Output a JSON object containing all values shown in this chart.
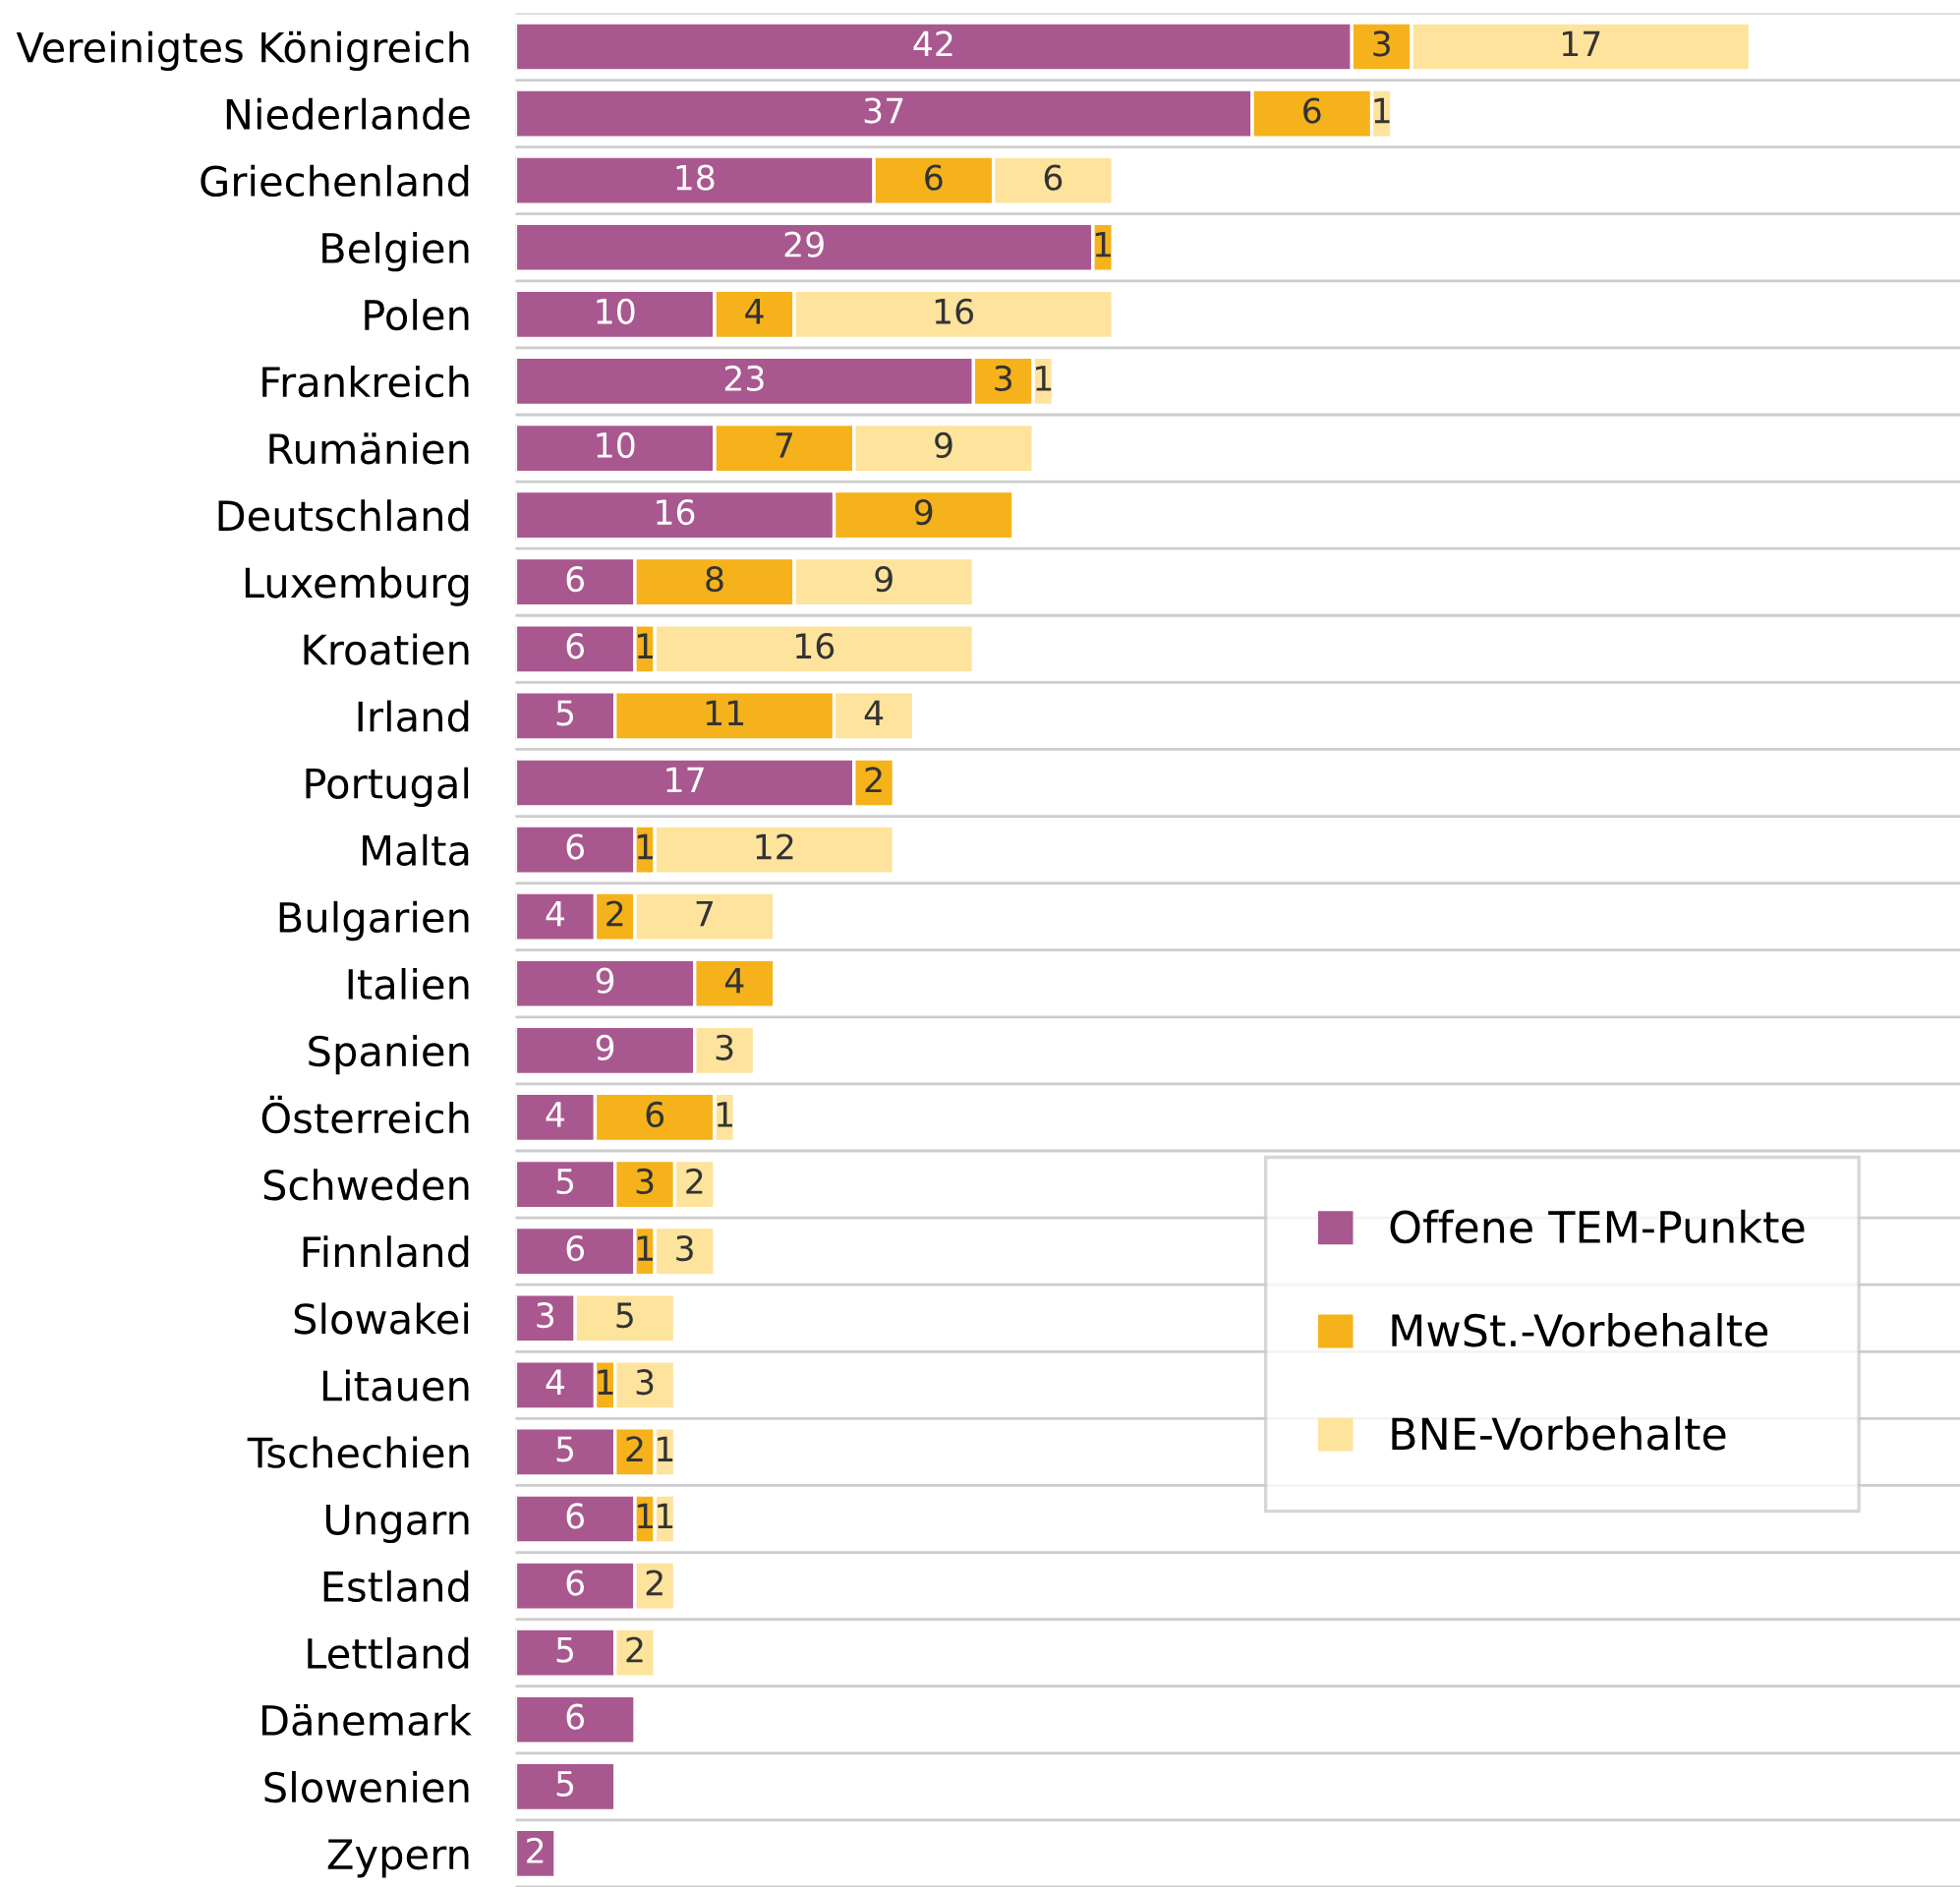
{
  "chart_data": {
    "type": "bar",
    "orientation": "horizontal",
    "stacked": true,
    "data_labels": true,
    "grid": "y",
    "legend": "right",
    "tick_labels": "y",
    "categories": [
      "Vereinigtes Königreich",
      "Niederlande",
      "Griechenland",
      "Belgien",
      "Polen",
      "Frankreich",
      "Rumänien",
      "Deutschland",
      "Luxemburg",
      "Kroatien",
      "Irland",
      "Portugal",
      "Malta",
      "Bulgarien",
      "Italien",
      "Spanien",
      "Österreich",
      "Schweden",
      "Finnland",
      "Slowakei",
      "Litauen",
      "Tschechien",
      "Ungarn",
      "Estland",
      "Lettland",
      "Dänemark",
      "Slowenien",
      "Zypern"
    ],
    "series": [
      {
        "name": "Offene TEM-Punkte",
        "color": "#a8588f",
        "values": [
          42,
          37,
          18,
          29,
          10,
          23,
          10,
          16,
          6,
          6,
          5,
          17,
          6,
          4,
          9,
          9,
          4,
          5,
          6,
          3,
          4,
          5,
          6,
          6,
          5,
          6,
          5,
          2
        ]
      },
      {
        "name": "MwSt.-Vorbehalte",
        "color": "#f5b21a",
        "values": [
          3,
          6,
          6,
          1,
          4,
          3,
          7,
          9,
          8,
          1,
          11,
          2,
          1,
          2,
          4,
          null,
          6,
          3,
          1,
          null,
          1,
          2,
          1,
          null,
          null,
          null,
          null,
          null
        ]
      },
      {
        "name": "BNE-Vorbehalte",
        "color": "#fde39c",
        "values": [
          17,
          1,
          6,
          null,
          16,
          1,
          9,
          null,
          9,
          16,
          4,
          null,
          12,
          7,
          null,
          3,
          1,
          2,
          3,
          5,
          3,
          1,
          1,
          2,
          2,
          null,
          null,
          null
        ]
      }
    ]
  }
}
